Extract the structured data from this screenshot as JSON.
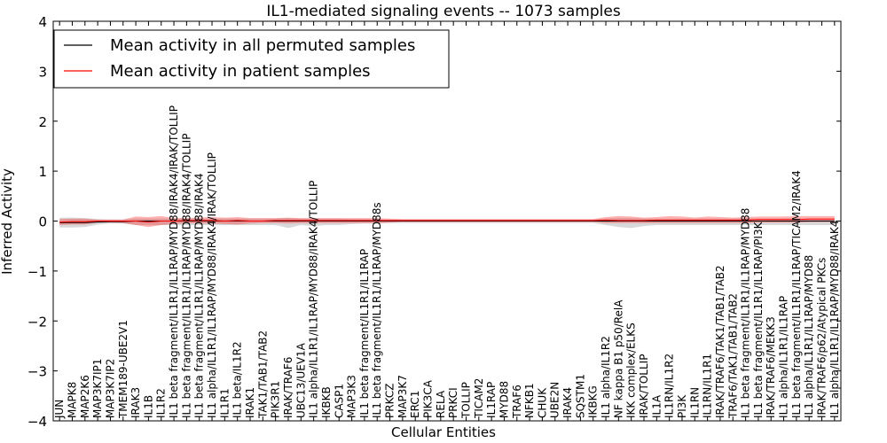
{
  "chart_data": {
    "type": "line",
    "title": "IL1-mediated signaling events -- 1073 samples",
    "xlabel": "Cellular Entities",
    "ylabel": "Inferred Activity",
    "ylim": [
      -4,
      4
    ],
    "yticks": [
      -4,
      -3,
      -2,
      -1,
      0,
      1,
      2,
      3,
      4
    ],
    "ytick_labels": [
      "−4",
      "−3",
      "−2",
      "−1",
      "0",
      "1",
      "2",
      "3",
      "4"
    ],
    "legend": {
      "position": "top-left",
      "entries": [
        {
          "label": "Mean activity in all permuted samples",
          "color": "#000000"
        },
        {
          "label": "Mean activity in patient samples",
          "color": "#ff0000"
        }
      ]
    },
    "categories": [
      "JUN",
      "MAPK8",
      "MAP2K6",
      "MAP3K7IP1",
      "MAP3K7IP2",
      "TMEM189-UBE2V1",
      "IRAK3",
      "IL1B",
      "IL1R2",
      "IL1 beta fragment/IL1R1/IL1RAP/MYD88/IRAK4/IRAK/TOLLIP",
      "IL1 beta fragment/IL1R1/IL1RAP/MYD88/IRAK4/TOLLIP",
      "IL1 beta fragment/IL1R1/IL1RAP/MYD88/IRAK4",
      "IL1 alpha/IL1R1/IL1RAP/MYD88/IRAK4/IRAK/TOLLIP",
      "IL1R1",
      "IL1 beta/IL1R2",
      "IRAK1",
      "TAK1/TAB1/TAB2",
      "PIK3R1",
      "IRAK/TRAF6",
      "UBC13/UEV1A",
      "IL1 alpha/IL1R1/IL1RAP/MYD88/IRAK4/TOLLIP",
      "IKBKB",
      "CASP1",
      "MAP3K3",
      "IL1 beta fragment/IL1R1/IL1RAP",
      "IL1 beta fragment/IL1R1/IL1RAP/MYD88s",
      "PRKCZ",
      "MAP3K7",
      "ERC1",
      "PIK3CA",
      "RELA",
      "PRKCI",
      "TOLLIP",
      "TICAM2",
      "IL1RAP",
      "MYD88",
      "TRAF6",
      "NFKB1",
      "CHUK",
      "UBE2N",
      "IRAK4",
      "SQSTM1",
      "IKBKG",
      "IL1 alpha/IL1R2",
      "NF kappa B1 p50/RelA",
      "IKK complex/ELKS",
      "IRAK/TOLLIP",
      "IL1A",
      "IL1RN/IL1R2",
      "PI3K",
      "IL1RN",
      "IL1RN/IL1R1",
      "IRAK/TRAF6/TAK1/TAB1/TAB2",
      "TRAF6/TAK1/TAB1/TAB2",
      "IL1 beta fragment/IL1R1/IL1RAP/MYD88",
      "IL1 beta fragment/IL1R1/IL1RAP/PI3K",
      "IRAK/TRAF6/MEKK3",
      "IL1 alpha/IL1R1/IL1RAP",
      "IL1 beta fragment/IL1R1/IL1RAP/TICAM2/IRAK4",
      "IL1 alpha/IL1R1/IL1RAP/MYD88",
      "IRAK/TRAF6/p62/Atypical PKCs",
      "IL1 alpha/IL1R1/IL1RAP/MYD88/IRAK4"
    ],
    "series": [
      {
        "name": "Mean activity in all permuted samples",
        "color": "#000000",
        "values": [
          -0.03,
          -0.03,
          -0.03,
          -0.02,
          -0.01,
          -0.01,
          0.0,
          0.0,
          0.0,
          0.0,
          0.0,
          0.0,
          0.0,
          0.0,
          0.0,
          0.0,
          0.0,
          0.0,
          0.0,
          0.0,
          0.0,
          0.0,
          0.0,
          0.0,
          0.0,
          0.0,
          0.0,
          0.0,
          0.0,
          0.0,
          0.0,
          0.0,
          0.0,
          0.0,
          0.0,
          0.0,
          0.0,
          0.0,
          0.0,
          0.0,
          0.0,
          0.0,
          0.0,
          0.0,
          0.0,
          0.0,
          0.0,
          0.0,
          0.0,
          0.0,
          0.0,
          0.0,
          0.0,
          0.0,
          0.0,
          0.0,
          0.0,
          0.0,
          0.0,
          0.0,
          0.0,
          0.0
        ],
        "band": {
          "lower": [
            -0.13,
            -0.13,
            -0.12,
            -0.07,
            -0.05,
            -0.05,
            -0.08,
            -0.08,
            -0.08,
            -0.08,
            -0.08,
            -0.08,
            -0.08,
            -0.08,
            -0.08,
            -0.08,
            -0.08,
            -0.08,
            -0.14,
            -0.08,
            -0.1,
            -0.08,
            -0.08,
            -0.06,
            -0.05,
            -0.05,
            -0.04,
            -0.04,
            -0.04,
            -0.04,
            -0.04,
            -0.04,
            -0.04,
            -0.04,
            -0.04,
            -0.04,
            -0.04,
            -0.04,
            -0.04,
            -0.04,
            -0.04,
            -0.04,
            -0.04,
            -0.08,
            -0.12,
            -0.14,
            -0.1,
            -0.08,
            -0.08,
            -0.08,
            -0.08,
            -0.08,
            -0.08,
            -0.08,
            -0.08,
            -0.08,
            -0.08,
            -0.08,
            -0.08,
            -0.08,
            -0.08,
            -0.08
          ],
          "upper": [
            0.07,
            0.07,
            0.06,
            0.04,
            0.03,
            0.03,
            0.05,
            0.05,
            0.05,
            0.05,
            0.05,
            0.05,
            0.05,
            0.05,
            0.05,
            0.05,
            0.05,
            0.05,
            0.06,
            0.05,
            0.05,
            0.05,
            0.05,
            0.04,
            0.04,
            0.03,
            0.03,
            0.03,
            0.03,
            0.03,
            0.03,
            0.03,
            0.03,
            0.03,
            0.03,
            0.03,
            0.03,
            0.03,
            0.03,
            0.03,
            0.03,
            0.03,
            0.03,
            0.05,
            0.06,
            0.06,
            0.05,
            0.05,
            0.05,
            0.05,
            0.05,
            0.05,
            0.05,
            0.05,
            0.05,
            0.05,
            0.05,
            0.05,
            0.05,
            0.05,
            0.05,
            0.05
          ]
        }
      },
      {
        "name": "Mean activity in patient samples",
        "color": "#ff0000",
        "values": [
          -0.02,
          -0.01,
          -0.01,
          0.0,
          0.0,
          0.0,
          0.0,
          -0.02,
          0.0,
          0.0,
          0.01,
          0.01,
          0.01,
          0.0,
          0.01,
          0.0,
          0.0,
          0.01,
          0.01,
          0.01,
          0.01,
          0.01,
          0.01,
          0.01,
          0.01,
          0.01,
          0.01,
          0.01,
          0.01,
          0.01,
          0.01,
          0.01,
          0.01,
          0.01,
          0.01,
          0.01,
          0.01,
          0.01,
          0.01,
          0.01,
          0.01,
          0.01,
          0.01,
          0.02,
          0.01,
          0.01,
          0.01,
          0.02,
          0.02,
          0.02,
          0.02,
          0.02,
          0.02,
          0.02,
          0.02,
          0.03,
          0.03,
          0.03,
          0.03,
          0.04,
          0.04,
          0.04
        ],
        "band": {
          "lower": [
            -0.08,
            -0.07,
            -0.07,
            -0.03,
            -0.03,
            -0.04,
            -0.08,
            -0.12,
            -0.08,
            -0.06,
            -0.04,
            -0.05,
            -0.05,
            -0.06,
            -0.07,
            -0.05,
            -0.04,
            -0.04,
            -0.05,
            -0.04,
            -0.04,
            -0.04,
            -0.04,
            -0.04,
            -0.04,
            -0.04,
            -0.03,
            -0.02,
            -0.02,
            -0.02,
            -0.02,
            -0.02,
            -0.02,
            -0.02,
            -0.02,
            -0.02,
            -0.02,
            -0.02,
            -0.02,
            -0.02,
            -0.02,
            -0.02,
            -0.02,
            -0.04,
            -0.04,
            -0.04,
            -0.04,
            -0.04,
            -0.04,
            -0.04,
            -0.04,
            -0.04,
            -0.04,
            -0.04,
            -0.04,
            -0.03,
            -0.03,
            -0.03,
            -0.03,
            -0.02,
            -0.02,
            -0.02
          ],
          "upper": [
            0.04,
            0.05,
            0.05,
            0.03,
            0.03,
            0.03,
            0.09,
            0.08,
            0.1,
            0.06,
            0.06,
            0.07,
            0.08,
            0.07,
            0.08,
            0.06,
            0.06,
            0.06,
            0.07,
            0.06,
            0.06,
            0.06,
            0.06,
            0.06,
            0.06,
            0.06,
            0.05,
            0.04,
            0.04,
            0.04,
            0.04,
            0.04,
            0.04,
            0.04,
            0.04,
            0.04,
            0.04,
            0.04,
            0.04,
            0.04,
            0.04,
            0.04,
            0.04,
            0.08,
            0.1,
            0.09,
            0.07,
            0.08,
            0.1,
            0.09,
            0.07,
            0.09,
            0.08,
            0.07,
            0.08,
            0.09,
            0.09,
            0.09,
            0.1,
            0.1,
            0.1,
            0.1
          ]
        }
      }
    ]
  }
}
